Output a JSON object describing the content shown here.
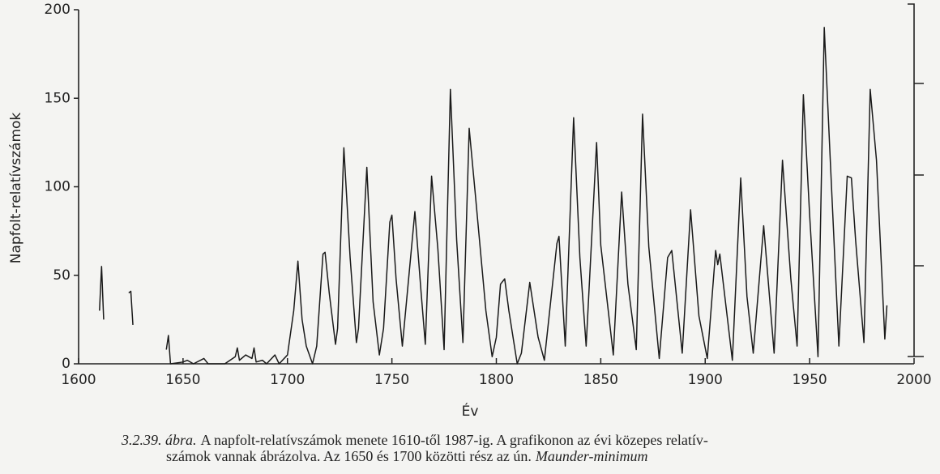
{
  "chart_data": {
    "type": "line",
    "x_label": "Év",
    "y_label": "Napfolt-relatívszámok",
    "xlim": [
      1600,
      2000
    ],
    "xticks": [
      1600,
      1650,
      1700,
      1750,
      1800,
      1850,
      1900,
      1950,
      2000
    ],
    "ylim": [
      0,
      200
    ],
    "yticks": [
      0,
      50,
      100,
      150,
      200
    ],
    "color": "#1a1a1a",
    "x": [
      1610,
      1611,
      1612,
      null,
      1624,
      1625,
      1626,
      null,
      1642,
      1643,
      1644,
      1650,
      1652,
      1655,
      1660,
      1662,
      1670,
      1675,
      1676,
      1677,
      1680,
      1683,
      1684,
      1685,
      1688,
      1690,
      1694,
      1696,
      1700,
      1703,
      1705,
      1707,
      1709,
      1712,
      1714,
      1717,
      1718,
      1720,
      1723,
      1724,
      1727,
      1730,
      1733,
      1734,
      1738,
      1741,
      1744,
      1746,
      1749,
      1750,
      1752,
      1755,
      1758,
      1761,
      1764,
      1766,
      1769,
      1772,
      1775,
      1778,
      1781,
      1784,
      1787,
      1790,
      1795,
      1798,
      1800,
      1802,
      1804,
      1806,
      1810,
      1812,
      1816,
      1820,
      1823,
      1826,
      1829,
      1830,
      1833,
      1837,
      1840,
      1843,
      1848,
      1850,
      1856,
      1860,
      1863,
      1867,
      1870,
      1873,
      1878,
      1882,
      1884,
      1889,
      1893,
      1897,
      1901,
      1905,
      1906,
      1907,
      1913,
      1917,
      1920,
      1923,
      1928,
      1933,
      1937,
      1941,
      1944,
      1947,
      1950,
      1954,
      1957,
      1960,
      1964,
      1968,
      1970,
      1972,
      1976,
      1979,
      1982,
      1986,
      1987
    ],
    "values": [
      30,
      55,
      25,
      null,
      40,
      41,
      22,
      null,
      8,
      16,
      0,
      1,
      2,
      0,
      3,
      0,
      0,
      4,
      9,
      2,
      5,
      3,
      9,
      1,
      2,
      0,
      5,
      0,
      5,
      30,
      58,
      25,
      10,
      0,
      10,
      62,
      63,
      40,
      11,
      20,
      122,
      60,
      12,
      20,
      111,
      35,
      5,
      20,
      80,
      84,
      48,
      10,
      48,
      86,
      40,
      11,
      106,
      65,
      8,
      155,
      70,
      12,
      133,
      95,
      30,
      4,
      15,
      45,
      48,
      30,
      0,
      6,
      46,
      15,
      2,
      35,
      68,
      72,
      10,
      139,
      60,
      10,
      125,
      67,
      5,
      97,
      45,
      8,
      141,
      66,
      3,
      60,
      64,
      6,
      87,
      27,
      3,
      64,
      56,
      62,
      2,
      105,
      38,
      6,
      78,
      6,
      115,
      48,
      10,
      152,
      84,
      4,
      190,
      112,
      10,
      106,
      105,
      70,
      12,
      155,
      115,
      14,
      33
    ]
  },
  "caption": {
    "label": "3.2.39. ábra.",
    "line1": "A napfolt-relatívszámok menete 1610-től 1987-ig. A grafikonon az évi közepes relatív-",
    "line2": "számok vannak ábrázolva. Az 1650 és 1700 közötti rész az ún.",
    "emphasis": "Maunder-minimum"
  }
}
